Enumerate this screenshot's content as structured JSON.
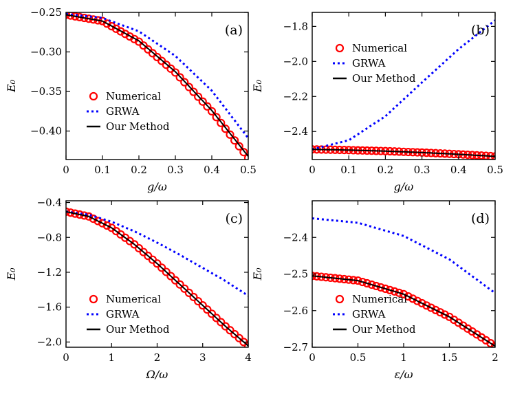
{
  "chart_data": [
    {
      "panel": "(a)",
      "type": "line",
      "title": "",
      "xlabel": "g/ω",
      "ylabel": "E₀",
      "xlim": [
        0,
        0.5
      ],
      "ylim": [
        -0.436,
        -0.25
      ],
      "xticks": [
        0,
        0.1,
        0.2,
        0.3,
        0.4,
        0.5
      ],
      "xtick_labels": [
        "0",
        "0.1",
        "0.2",
        "0.3",
        "0.4",
        "0.5"
      ],
      "yticks": [
        -0.25,
        -0.3,
        -0.35,
        -0.4
      ],
      "ytick_labels": [
        "−0.25",
        "−0.30",
        "−0.35",
        "−0.40"
      ],
      "legend_position": "middle-left",
      "series": [
        {
          "name": "Numerical",
          "style": "circles",
          "color": "#ff0000",
          "x": [
            0,
            0.1,
            0.2,
            0.3,
            0.4,
            0.5
          ],
          "y": [
            -0.253,
            -0.261,
            -0.287,
            -0.326,
            -0.375,
            -0.434
          ]
        },
        {
          "name": "GRWA",
          "style": "dotted",
          "color": "#0000ff",
          "x": [
            0,
            0.1,
            0.2,
            0.3,
            0.4,
            0.5
          ],
          "y": [
            -0.252,
            -0.257,
            -0.274,
            -0.305,
            -0.349,
            -0.409
          ]
        },
        {
          "name": "Our Method",
          "style": "solid",
          "color": "#000000",
          "x": [
            0,
            0.1,
            0.2,
            0.3,
            0.4,
            0.5
          ],
          "y": [
            -0.253,
            -0.261,
            -0.286,
            -0.325,
            -0.374,
            -0.432
          ]
        }
      ]
    },
    {
      "panel": "(b)",
      "type": "line",
      "title": "",
      "xlabel": "g/ω",
      "ylabel": "E₀",
      "xlim": [
        0,
        0.5
      ],
      "ylim": [
        -2.56,
        -1.72
      ],
      "xticks": [
        0,
        0.1,
        0.2,
        0.3,
        0.4,
        0.5
      ],
      "xtick_labels": [
        "0",
        "0.1",
        "0.2",
        "0.3",
        "0.4",
        "0.5"
      ],
      "yticks": [
        -1.8,
        -2.0,
        -2.2,
        -2.4
      ],
      "ytick_labels": [
        "−1.8",
        "−2.0",
        "−2.2",
        "−2.4"
      ],
      "legend_position": "upper-left",
      "series": [
        {
          "name": "Numerical",
          "style": "circles",
          "color": "#ff0000",
          "x": [
            0,
            0.1,
            0.2,
            0.3,
            0.4,
            0.5
          ],
          "y": [
            -2.502,
            -2.506,
            -2.512,
            -2.52,
            -2.53,
            -2.542
          ]
        },
        {
          "name": "GRWA",
          "style": "dotted",
          "color": "#0000ff",
          "x": [
            0,
            0.1,
            0.2,
            0.3,
            0.4,
            0.5
          ],
          "y": [
            -2.502,
            -2.45,
            -2.313,
            -2.12,
            -1.93,
            -1.765
          ]
        },
        {
          "name": "Our Method",
          "style": "solid",
          "color": "#000000",
          "x": [
            0,
            0.1,
            0.2,
            0.3,
            0.4,
            0.5
          ],
          "y": [
            -2.502,
            -2.506,
            -2.512,
            -2.52,
            -2.53,
            -2.542
          ]
        }
      ]
    },
    {
      "panel": "(c)",
      "type": "line",
      "title": "",
      "xlabel": "Ω/ω",
      "ylabel": "E₀",
      "xlim": [
        0,
        4
      ],
      "ylim": [
        -2.06,
        -0.38
      ],
      "xticks": [
        0,
        1,
        2,
        3,
        4
      ],
      "xtick_labels": [
        "0",
        "1",
        "2",
        "3",
        "4"
      ],
      "yticks": [
        -0.4,
        -0.8,
        -1.2,
        -1.6,
        -2.0
      ],
      "ytick_labels": [
        "−0.4",
        "−0.8",
        "−1.2",
        "−1.6",
        "−2.0"
      ],
      "legend_position": "lower-left",
      "series": [
        {
          "name": "Numerical",
          "style": "circles",
          "color": "#ff0000",
          "x": [
            0,
            0.5,
            1,
            1.5,
            2,
            2.5,
            3,
            3.5,
            4
          ],
          "y": [
            -0.505,
            -0.56,
            -0.69,
            -0.88,
            -1.1,
            -1.34,
            -1.58,
            -1.82,
            -2.045
          ]
        },
        {
          "name": "GRWA",
          "style": "dotted",
          "color": "#0000ff",
          "x": [
            0,
            0.5,
            1,
            1.5,
            2,
            2.5,
            3,
            3.5,
            4
          ],
          "y": [
            -0.505,
            -0.54,
            -0.62,
            -0.73,
            -0.86,
            -1.0,
            -1.15,
            -1.3,
            -1.47
          ]
        },
        {
          "name": "Our Method",
          "style": "solid",
          "color": "#000000",
          "x": [
            0,
            0.5,
            1,
            1.5,
            2,
            2.5,
            3,
            3.5,
            4
          ],
          "y": [
            -0.505,
            -0.56,
            -0.69,
            -0.88,
            -1.1,
            -1.34,
            -1.58,
            -1.82,
            -2.045
          ]
        }
      ]
    },
    {
      "panel": "(d)",
      "type": "line",
      "title": "",
      "xlabel": "ε/ω",
      "ylabel": "E₀",
      "xlim": [
        0,
        2
      ],
      "ylim": [
        -2.7,
        -2.3
      ],
      "xticks": [
        0,
        0.5,
        1,
        1.5,
        2
      ],
      "xtick_labels": [
        "0",
        "0.5",
        "1",
        "1.5",
        "2"
      ],
      "yticks": [
        -2.4,
        -2.5,
        -2.6,
        -2.7
      ],
      "ytick_labels": [
        "−2.4",
        "−2.5",
        "−2.6",
        "−2.7"
      ],
      "legend_position": "lower-left",
      "series": [
        {
          "name": "Numerical",
          "style": "circles",
          "color": "#ff0000",
          "x": [
            0,
            0.5,
            1,
            1.5,
            2
          ],
          "y": [
            -2.505,
            -2.518,
            -2.555,
            -2.617,
            -2.697
          ]
        },
        {
          "name": "GRWA",
          "style": "dotted",
          "color": "#0000ff",
          "x": [
            0,
            0.5,
            1,
            1.5,
            2
          ],
          "y": [
            -2.348,
            -2.36,
            -2.396,
            -2.46,
            -2.552
          ]
        },
        {
          "name": "Our Method",
          "style": "solid",
          "color": "#000000",
          "x": [
            0,
            0.5,
            1,
            1.5,
            2
          ],
          "y": [
            -2.505,
            -2.518,
            -2.555,
            -2.617,
            -2.697
          ]
        }
      ]
    }
  ]
}
